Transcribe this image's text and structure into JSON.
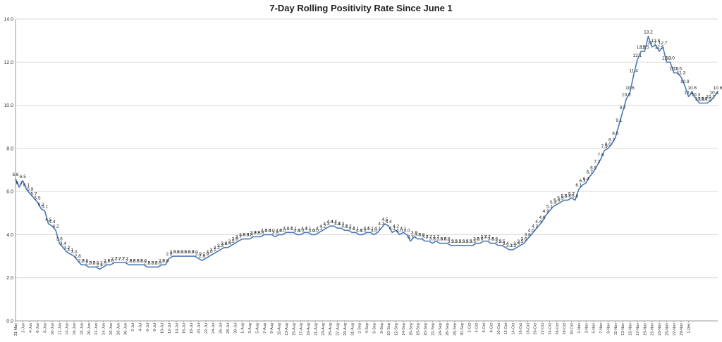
{
  "chart_data": {
    "type": "line",
    "title": "7-Day Rolling Positivity Rate Since June 1",
    "xlabel": "",
    "ylabel": "",
    "ylim": [
      0,
      14
    ],
    "yticks": [
      "0.0",
      "2.0",
      "4.0",
      "6.0",
      "8.0",
      "10.0",
      "12.0",
      "14.0"
    ],
    "grid": "horizontal",
    "legend": "none",
    "line_color": "#4a7ab8",
    "x_tick_labels": [
      "31-May",
      "2-Jun",
      "4-Jun",
      "6-Jun",
      "8-Jun",
      "10-Jun",
      "12-Jun",
      "14-Jun",
      "16-Jun",
      "18-Jun",
      "20-Jun",
      "22-Jun",
      "24-Jun",
      "26-Jun",
      "28-Jun",
      "30-Jun",
      "2-Jul",
      "4-Jul",
      "6-Jul",
      "8-Jul",
      "10-Jul",
      "12-Jul",
      "14-Jul",
      "16-Jul",
      "18-Jul",
      "20-Jul",
      "22-Jul",
      "24-Jul",
      "26-Jul",
      "28-Jul",
      "30-Jul",
      "1-Aug",
      "3-Aug",
      "5-Aug",
      "7-Aug",
      "9-Aug",
      "11-Aug",
      "13-Aug",
      "15-Aug",
      "17-Aug",
      "19-Aug",
      "21-Aug",
      "23-Aug",
      "25-Aug",
      "27-Aug",
      "29-Aug",
      "31-Aug",
      "2-Sep",
      "4-Sep",
      "6-Sep",
      "8-Sep",
      "10-Sep",
      "12-Sep",
      "14-Sep",
      "16-Sep",
      "18-Sep",
      "20-Sep",
      "22-Sep",
      "24-Sep",
      "26-Sep",
      "28-Sep",
      "30-Sep",
      "2-Oct",
      "4-Oct",
      "6-Oct",
      "8-Oct",
      "10-Oct",
      "12-Oct",
      "14-Oct",
      "16-Oct",
      "18-Oct",
      "20-Oct",
      "22-Oct",
      "24-Oct",
      "26-Oct",
      "28-Oct",
      "30-Oct",
      "1-Nov",
      "3-Nov",
      "5-Nov",
      "7-Nov",
      "9-Nov",
      "11-Nov",
      "13-Nov",
      "15-Nov",
      "17-Nov",
      "19-Nov",
      "21-Nov",
      "23-Nov",
      "25-Nov",
      "27-Nov",
      "29-Nov",
      "1-Dec"
    ],
    "series": [
      {
        "values": [
          6.6,
          6.2,
          6.5,
          6.1,
          5.9,
          5.7,
          5.5,
          5.2,
          5.1,
          4.5,
          4.4,
          4.2,
          3.6,
          3.4,
          3.2,
          3.1,
          3.0,
          2.8,
          2.6,
          2.6,
          2.5,
          2.5,
          2.5,
          2.4,
          2.5,
          2.6,
          2.6,
          2.7,
          2.7,
          2.7,
          2.7,
          2.6,
          2.6,
          2.6,
          2.6,
          2.6,
          2.5,
          2.5,
          2.5,
          2.5,
          2.6,
          2.6,
          2.9,
          3.0,
          3.0,
          3.0,
          3.0,
          3.0,
          3.0,
          3.0,
          2.9,
          2.8,
          2.9,
          3.0,
          3.1,
          3.2,
          3.3,
          3.4,
          3.4,
          3.5,
          3.6,
          3.7,
          3.8,
          3.8,
          3.8,
          3.9,
          3.9,
          3.9,
          4.0,
          4.0,
          4.0,
          3.9,
          4.0,
          4.0,
          4.1,
          4.1,
          4.1,
          4.0,
          4.0,
          4.1,
          4.1,
          4.0,
          4.0,
          4.1,
          4.2,
          4.3,
          4.4,
          4.4,
          4.3,
          4.3,
          4.2,
          4.2,
          4.1,
          4.1,
          4.0,
          4.0,
          4.1,
          4.1,
          4.0,
          4.1,
          4.3,
          4.5,
          4.4,
          4.1,
          4.2,
          4.0,
          4.1,
          4.0,
          3.7,
          3.9,
          3.8,
          3.8,
          3.7,
          3.7,
          3.6,
          3.7,
          3.6,
          3.6,
          3.6,
          3.5,
          3.5,
          3.5,
          3.5,
          3.5,
          3.5,
          3.5,
          3.6,
          3.6,
          3.7,
          3.7,
          3.6,
          3.6,
          3.5,
          3.5,
          3.4,
          3.3,
          3.3,
          3.4,
          3.5,
          3.6,
          3.8,
          4.0,
          4.2,
          4.4,
          4.6,
          4.9,
          5.1,
          5.3,
          5.4,
          5.5,
          5.6,
          5.6,
          5.7,
          5.6,
          6.1,
          6.3,
          6.4,
          6.7,
          6.9,
          7.2,
          7.5,
          7.9,
          8.0,
          8.2,
          8.5,
          9.1,
          9.7,
          10.3,
          10.6,
          11.4,
          12.1,
          12.5,
          12.5,
          13.2,
          12.7,
          12.8,
          12.5,
          12.7,
          12.0,
          12.0,
          11.5,
          11.5,
          11.3,
          10.9,
          10.4,
          10.6,
          10.3,
          10.1,
          10.1,
          10.1,
          10.2,
          10.4,
          10.6
        ]
      }
    ]
  }
}
